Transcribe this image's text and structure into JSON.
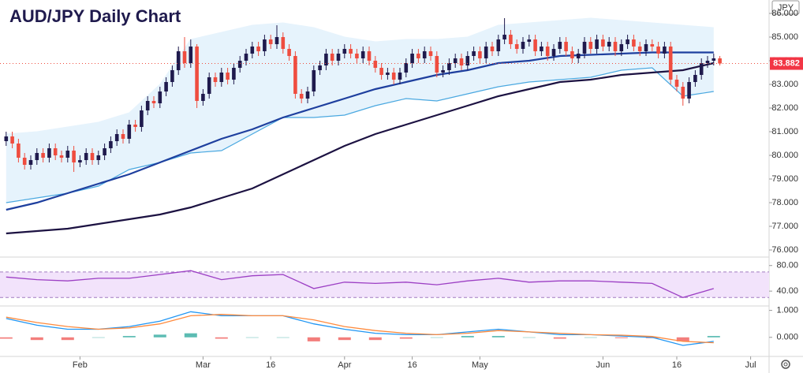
{
  "chart_data": {
    "type": "candlestick",
    "title": "AUD/JPY Daily Chart",
    "currency": "JPY",
    "xlim": [
      -1,
      124
    ],
    "xticks": [
      {
        "value": 12,
        "label": "Feb"
      },
      {
        "value": 32,
        "label": "Mar"
      },
      {
        "value": 43,
        "label": "16"
      },
      {
        "value": 55,
        "label": "Apr"
      },
      {
        "value": 66,
        "label": "16"
      },
      {
        "value": 77,
        "label": "May"
      },
      {
        "value": 97,
        "label": "Jun"
      },
      {
        "value": 109,
        "label": "16"
      },
      {
        "value": 121,
        "label": "Jul"
      }
    ],
    "ylim": [
      75.733,
      86.567
    ],
    "yticks": [
      {
        "value": 76,
        "label": "76.000"
      },
      {
        "value": 77,
        "label": "77.000"
      },
      {
        "value": 78,
        "label": "78.000"
      },
      {
        "value": 79,
        "label": "79.000"
      },
      {
        "value": 80,
        "label": "80.000"
      },
      {
        "value": 81,
        "label": "81.000"
      },
      {
        "value": 82,
        "label": "82.000"
      },
      {
        "value": 83,
        "label": "83.000"
      },
      {
        "value": 84,
        "label": "84.000"
      },
      {
        "value": 85,
        "label": "85.000"
      },
      {
        "value": 86,
        "label": "86.000"
      }
    ],
    "last_price": {
      "value": 83.882,
      "label": "83.882"
    },
    "up_color": "#1f1a4d",
    "down_color": "#ef4d3f",
    "candles": {
      "open": [
        80.6,
        80.8,
        80.5,
        79.9,
        79.6,
        79.8,
        80.1,
        79.9,
        80.3,
        80.0,
        79.9,
        80.2,
        79.7,
        79.8,
        80.1,
        79.8,
        80.0,
        80.3,
        80.6,
        80.9,
        80.7,
        81.3,
        81.2,
        81.9,
        82.3,
        82.2,
        82.7,
        83.1,
        83.6,
        84.4,
        83.9,
        84.6,
        82.3,
        82.6,
        83.3,
        83.1,
        83.5,
        83.2,
        83.7,
        84.0,
        84.3,
        84.6,
        84.4,
        84.9,
        84.7,
        85.0,
        84.5,
        84.2,
        82.6,
        82.4,
        82.7,
        83.6,
        83.8,
        84.3,
        84.0,
        84.3,
        84.5,
        84.3,
        84.1,
        84.4,
        84.0,
        83.7,
        83.4,
        83.5,
        83.2,
        83.5,
        83.9,
        84.3,
        84.1,
        84.4,
        84.2,
        83.5,
        83.6,
        83.9,
        84.1,
        83.8,
        84.2,
        84.4,
        84.1,
        84.6,
        84.4,
        84.9,
        85.1,
        84.7,
        84.5,
        84.8,
        84.9,
        84.4,
        84.6,
        84.2,
        84.5,
        84.8,
        84.4,
        84.1,
        84.3,
        84.8,
        84.5,
        84.9,
        84.6,
        84.8,
        84.4,
        84.7,
        84.9,
        84.6,
        84.4,
        84.7,
        84.6,
        84.3,
        84.6,
        83.2,
        82.9,
        82.4,
        83.1,
        83.4,
        83.9,
        84.0,
        84.1
      ],
      "high": [
        81.0,
        81.0,
        80.7,
        80.1,
        80.0,
        80.3,
        80.3,
        80.5,
        80.5,
        80.2,
        80.4,
        80.4,
        80.0,
        80.3,
        80.3,
        80.2,
        80.5,
        80.8,
        81.1,
        81.1,
        81.5,
        81.5,
        82.1,
        82.5,
        82.5,
        82.9,
        83.3,
        83.8,
        84.6,
        85.0,
        84.9,
        84.7,
        82.8,
        83.5,
        83.5,
        83.7,
        83.7,
        83.9,
        84.2,
        84.5,
        84.8,
        84.8,
        85.1,
        85.1,
        85.5,
        85.2,
        84.7,
        84.4,
        82.8,
        82.9,
        83.8,
        84.0,
        84.5,
        84.5,
        84.5,
        84.7,
        84.7,
        84.5,
        84.6,
        84.6,
        84.2,
        83.9,
        83.7,
        83.7,
        83.7,
        84.1,
        84.5,
        84.5,
        84.6,
        84.6,
        84.4,
        83.8,
        84.1,
        84.3,
        84.3,
        84.4,
        84.6,
        84.6,
        84.8,
        84.8,
        85.1,
        85.8,
        85.3,
        84.9,
        85.0,
        85.1,
        85.1,
        84.8,
        84.8,
        84.7,
        85.0,
        85.0,
        84.6,
        84.5,
        85.0,
        85.0,
        85.1,
        85.1,
        85.0,
        85.0,
        84.9,
        85.1,
        85.1,
        84.8,
        84.9,
        84.9,
        84.8,
        84.8,
        84.8,
        83.4,
        83.1,
        83.3,
        83.6,
        84.1,
        84.2,
        84.3,
        84.2
      ],
      "low": [
        80.4,
        80.3,
        79.7,
        79.4,
        79.4,
        79.6,
        79.7,
        79.7,
        79.8,
        79.7,
        79.7,
        79.3,
        79.5,
        79.6,
        79.6,
        79.6,
        79.8,
        80.1,
        80.4,
        80.5,
        80.5,
        81.0,
        81.0,
        81.7,
        82.0,
        82.0,
        82.5,
        82.9,
        83.4,
        83.7,
        83.7,
        82.0,
        82.1,
        82.4,
        82.9,
        82.9,
        83.0,
        83.0,
        83.5,
        83.8,
        84.1,
        84.2,
        84.2,
        84.5,
        84.5,
        84.3,
        84.0,
        82.4,
        82.2,
        82.2,
        82.5,
        83.4,
        83.6,
        83.8,
        83.8,
        84.1,
        84.1,
        83.9,
        83.9,
        83.8,
        83.5,
        83.2,
        83.2,
        83.0,
        83.0,
        83.3,
        83.7,
        83.9,
        83.9,
        84.0,
        83.3,
        83.3,
        83.4,
        83.7,
        83.6,
        83.6,
        84.0,
        83.9,
        83.9,
        84.2,
        84.2,
        84.7,
        84.5,
        84.3,
        84.3,
        84.6,
        84.2,
        84.2,
        84.0,
        84.0,
        84.3,
        84.2,
        83.9,
        83.9,
        84.1,
        84.3,
        84.3,
        84.4,
        84.4,
        84.2,
        84.2,
        84.5,
        84.4,
        84.2,
        84.2,
        84.4,
        84.1,
        84.1,
        83.0,
        82.7,
        82.1,
        82.2,
        82.9,
        83.2,
        83.7,
        83.8,
        83.8
      ],
      "close": [
        80.8,
        80.5,
        79.9,
        79.6,
        79.8,
        80.1,
        79.9,
        80.3,
        80.0,
        79.9,
        80.2,
        79.7,
        79.8,
        80.1,
        79.8,
        80.0,
        80.3,
        80.6,
        80.9,
        80.7,
        81.3,
        81.2,
        81.9,
        82.3,
        82.2,
        82.7,
        83.1,
        83.6,
        84.4,
        83.9,
        84.6,
        82.3,
        82.6,
        83.3,
        83.1,
        83.5,
        83.2,
        83.7,
        84.0,
        84.3,
        84.6,
        84.4,
        84.9,
        84.7,
        85.0,
        84.5,
        84.2,
        82.6,
        82.4,
        82.7,
        83.6,
        83.8,
        84.3,
        84.0,
        84.3,
        84.5,
        84.3,
        84.1,
        84.4,
        84.0,
        83.7,
        83.4,
        83.5,
        83.2,
        83.5,
        83.9,
        84.3,
        84.1,
        84.4,
        84.2,
        83.5,
        83.6,
        83.9,
        84.1,
        83.8,
        84.2,
        84.4,
        84.1,
        84.6,
        84.4,
        84.9,
        85.1,
        84.7,
        84.5,
        84.8,
        84.9,
        84.4,
        84.6,
        84.2,
        84.5,
        84.8,
        84.4,
        84.1,
        84.3,
        84.8,
        84.5,
        84.9,
        84.6,
        84.8,
        84.4,
        84.7,
        84.9,
        84.6,
        84.4,
        84.7,
        84.6,
        84.3,
        84.6,
        83.2,
        82.9,
        82.4,
        83.1,
        83.4,
        83.9,
        84.0,
        84.1,
        83.882
      ]
    },
    "line_x": [
      0,
      5,
      10,
      15,
      20,
      25,
      30,
      35,
      40,
      45,
      50,
      55,
      60,
      65,
      70,
      75,
      80,
      85,
      90,
      95,
      100,
      105,
      110,
      115
    ],
    "bollinger": {
      "fill_color": "#e6f3fc",
      "line_color": "#4aa8e0",
      "upper": [
        80.9,
        81.0,
        81.2,
        81.4,
        81.8,
        83.0,
        84.9,
        85.2,
        85.5,
        85.6,
        85.4,
        85.0,
        84.8,
        84.9,
        84.9,
        85.0,
        85.5,
        85.6,
        85.7,
        85.8,
        85.7,
        85.6,
        85.5,
        85.4
      ],
      "lower": [
        78.0,
        78.2,
        78.4,
        78.7,
        79.4,
        79.7,
        80.1,
        80.2,
        80.9,
        81.6,
        81.6,
        81.7,
        82.1,
        82.4,
        82.3,
        82.6,
        82.9,
        83.1,
        83.2,
        83.3,
        83.6,
        83.7,
        82.5,
        82.7
      ]
    },
    "overlays": [
      {
        "color": "#1e3f9e",
        "values": [
          77.7,
          78.0,
          78.4,
          78.8,
          79.2,
          79.7,
          80.2,
          80.7,
          81.1,
          81.6,
          82.0,
          82.4,
          82.8,
          83.1,
          83.4,
          83.6,
          83.9,
          84.0,
          84.2,
          84.25,
          84.3,
          84.35,
          84.35,
          84.35
        ]
      },
      {
        "color": "#1c1242",
        "values": [
          76.7,
          76.8,
          76.9,
          77.1,
          77.3,
          77.5,
          77.8,
          78.2,
          78.6,
          79.2,
          79.8,
          80.4,
          80.9,
          81.3,
          81.7,
          82.1,
          82.5,
          82.8,
          83.1,
          83.2,
          83.4,
          83.5,
          83.6,
          83.9
        ]
      }
    ],
    "rsi": {
      "ylim": [
        18,
        92
      ],
      "yticks": [
        {
          "value": 40,
          "label": "40.00"
        },
        {
          "value": 80,
          "label": "80.00"
        }
      ],
      "bands": [
        30,
        70
      ],
      "color": "#9c3fc4",
      "fill_color": "#f2e3fb",
      "values": [
        62,
        58,
        56,
        60,
        60,
        66,
        72,
        58,
        64,
        66,
        44,
        54,
        52,
        54,
        50,
        56,
        60,
        54,
        56,
        56,
        54,
        52,
        30,
        44
      ]
    },
    "macd": {
      "ylim": [
        -0.68,
        1.135
      ],
      "yticks": [
        {
          "value": 0,
          "label": "0.000"
        },
        {
          "value": 1,
          "label": "1.000"
        }
      ],
      "series": [
        {
          "color": "#2196f3",
          "values": [
            0.7,
            0.45,
            0.3,
            0.3,
            0.4,
            0.6,
            0.95,
            0.8,
            0.8,
            0.8,
            0.5,
            0.3,
            0.15,
            0.1,
            0.1,
            0.2,
            0.3,
            0.2,
            0.1,
            0.1,
            0.05,
            0.0,
            -0.3,
            -0.15
          ]
        },
        {
          "color": "#ff8a3d",
          "values": [
            0.75,
            0.55,
            0.4,
            0.3,
            0.35,
            0.5,
            0.8,
            0.85,
            0.8,
            0.8,
            0.65,
            0.4,
            0.25,
            0.15,
            0.1,
            0.15,
            0.25,
            0.2,
            0.15,
            0.1,
            0.08,
            0.03,
            -0.15,
            -0.2
          ]
        }
      ],
      "histogram": {
        "up_color": "#26a69a",
        "down_color": "#ef5350",
        "values": [
          -0.05,
          -0.1,
          -0.1,
          0,
          0.05,
          0.1,
          0.15,
          -0.05,
          0,
          0,
          -0.15,
          -0.1,
          -0.1,
          -0.05,
          0,
          0.05,
          0.05,
          0,
          -0.05,
          0,
          -0.03,
          -0.03,
          -0.15,
          0.05
        ]
      }
    }
  }
}
